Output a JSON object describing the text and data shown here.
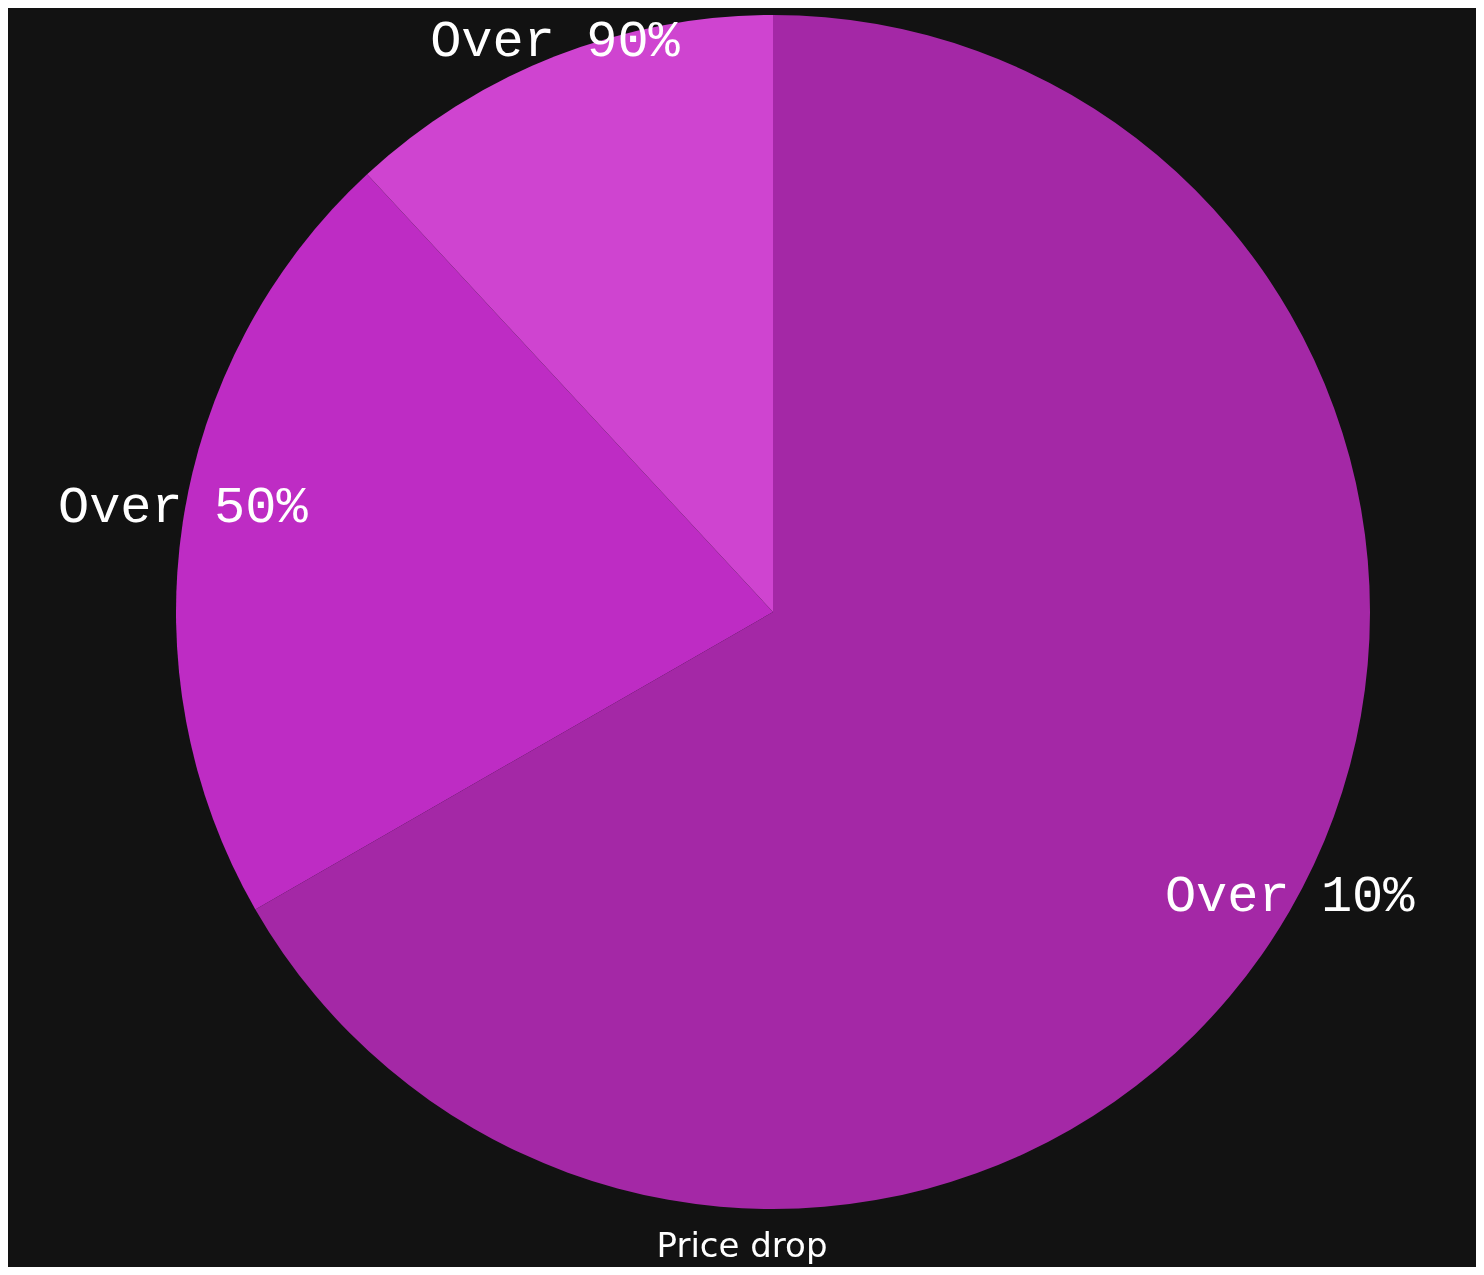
{
  "chart_data": {
    "type": "pie",
    "xlabel": "Price drop",
    "categories": [
      "Over 10%",
      "Over 50%",
      "Over 90%"
    ],
    "values": [
      66.7,
      21.4,
      11.9
    ],
    "colors": [
      "#a428a6",
      "#be2cc4",
      "#cf44d0"
    ],
    "legend": false
  }
}
